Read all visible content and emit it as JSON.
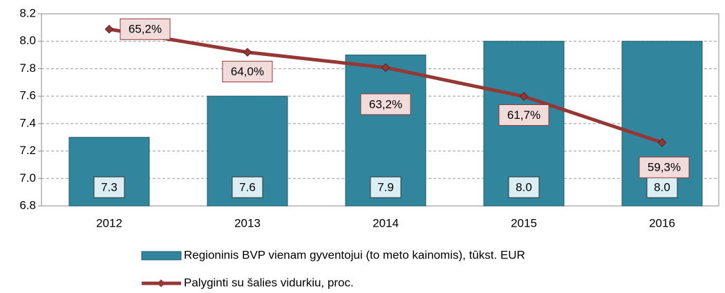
{
  "chart_data": {
    "type": "bar",
    "categories": [
      "2012",
      "2013",
      "2014",
      "2015",
      "2016"
    ],
    "ylim": [
      6.8,
      8.2
    ],
    "yticks": [
      6.8,
      {
        "value": 7.0,
        "label": "7.0"
      },
      7.2,
      7.4,
      7.6,
      7.8,
      {
        "value": 8.0,
        "label": "8.0"
      },
      8.2
    ],
    "y2lim": [
      56,
      66
    ],
    "grid": true,
    "legend": "bottom",
    "series": [
      {
        "name": "Regioninis BVP vienam gyventojui (to meto kainomis), tūkst. EUR",
        "type": "bar",
        "color": "#31859c",
        "values": [
          7.3,
          7.6,
          7.9,
          8.0,
          8.0
        ],
        "value_labels": [
          "7.3",
          "7.6",
          "7.9",
          "8.0",
          "8.0"
        ]
      },
      {
        "name": "Palyginti su šalies vidurkiu, proc.",
        "type": "line",
        "axis": "y2",
        "color": "#953735",
        "values": [
          65.2,
          64.0,
          63.2,
          61.7,
          59.3
        ],
        "value_labels": [
          "65,2%",
          "64,0%",
          "63,2%",
          "61,7%",
          "59,3%"
        ]
      }
    ]
  }
}
